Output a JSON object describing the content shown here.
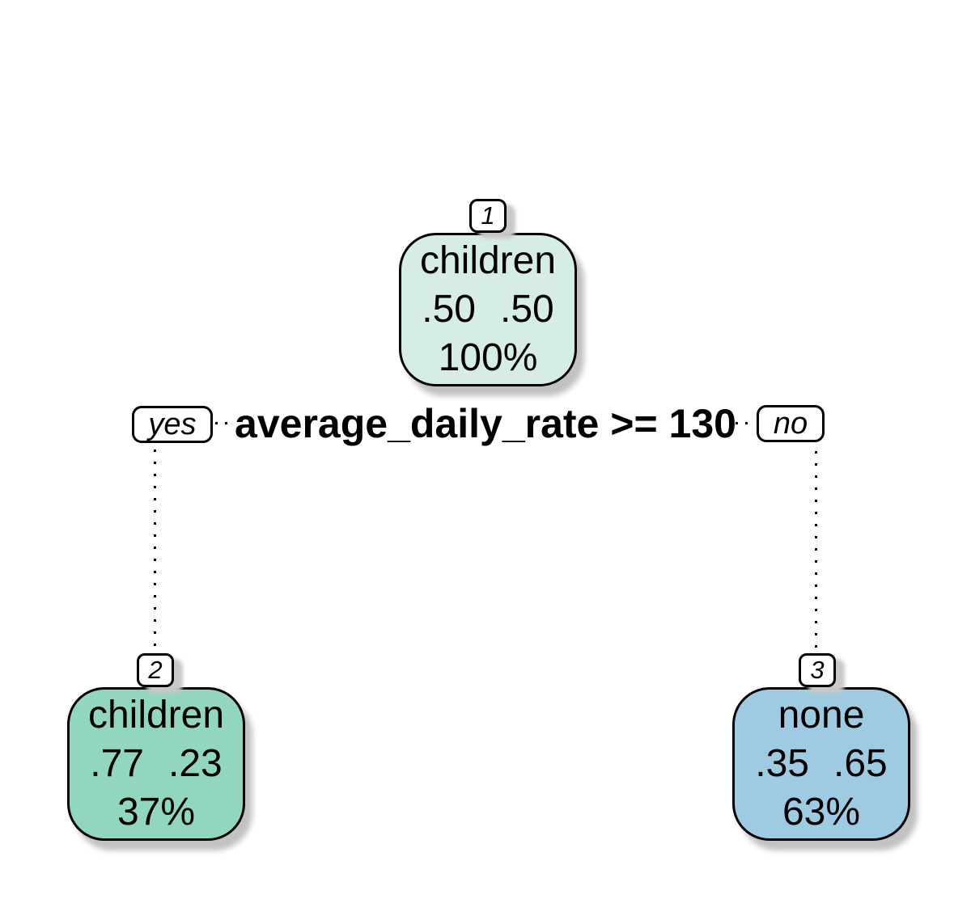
{
  "figure": {
    "type": "decision-tree",
    "background": "#ffffff",
    "split": {
      "condition": "average_daily_rate >= 130",
      "yes_label": "yes",
      "no_label": "no"
    },
    "nodes": [
      {
        "id": "1",
        "branch": "root",
        "class_label": "children",
        "prob_left": ".50",
        "prob_right": ".50",
        "coverage": "100%",
        "fill": "#d6ede4"
      },
      {
        "id": "2",
        "branch": "yes",
        "class_label": "children",
        "prob_left": ".77",
        "prob_right": ".23",
        "coverage": "37%",
        "fill": "#92d6bf"
      },
      {
        "id": "3",
        "branch": "no",
        "class_label": "none",
        "prob_left": ".35",
        "prob_right": ".65",
        "coverage": "63%",
        "fill": "#9fcbe2"
      }
    ],
    "colors": {
      "node_border": "#000000",
      "shadow": "#c2c2c2",
      "label_box_fill": "#ffffff",
      "text": "#000000"
    }
  }
}
